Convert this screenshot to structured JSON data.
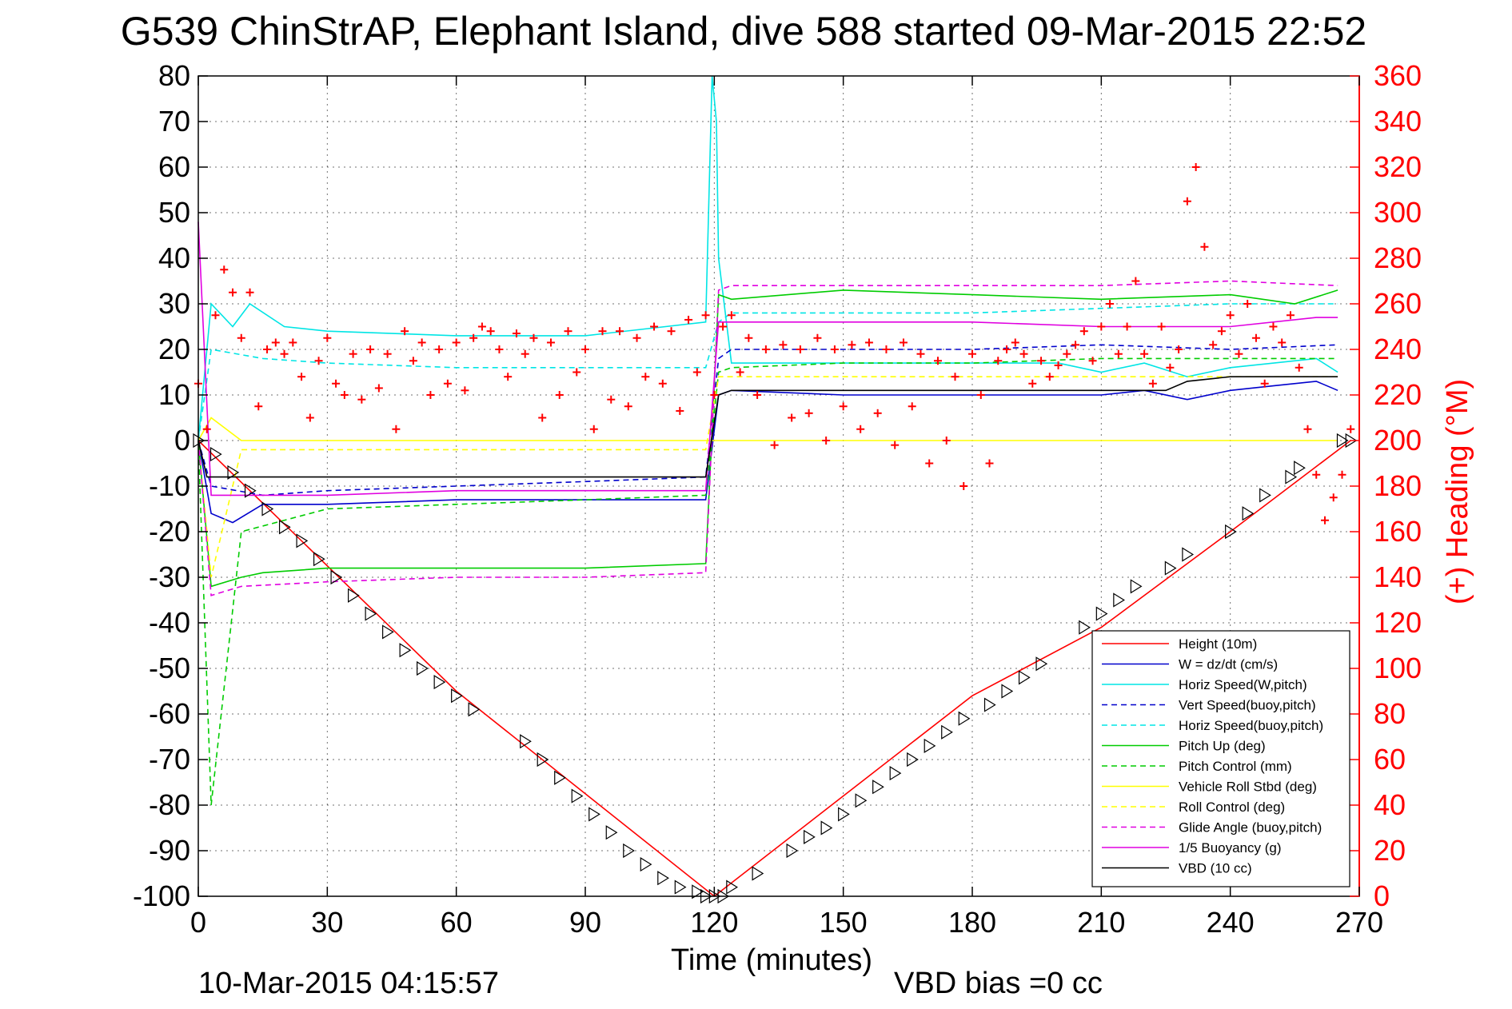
{
  "chart_data": {
    "type": "line",
    "title": "G539 ChinStrAP, Elephant Island, dive 588 started 09-Mar-2015 22:52",
    "xlabel": "Time (minutes)",
    "ylabel_right": "(+) Heading (°M)",
    "xlim": [
      0,
      270
    ],
    "ylim": [
      -100,
      80
    ],
    "ylim_right": [
      0,
      360
    ],
    "x_ticks": [
      "0",
      "30",
      "60",
      "90",
      "120",
      "150",
      "180",
      "210",
      "240",
      "270"
    ],
    "y_ticks": [
      "80",
      "70",
      "60",
      "50",
      "40",
      "30",
      "20",
      "10",
      "0",
      "-10",
      "-20",
      "-30",
      "-40",
      "-50",
      "-60",
      "-70",
      "-80",
      "-90",
      "-100"
    ],
    "y_ticks_right": [
      "360",
      "340",
      "320",
      "300",
      "280",
      "260",
      "240",
      "220",
      "200",
      "180",
      "160",
      "140",
      "120",
      "100",
      "80",
      "60",
      "40",
      "20",
      "0"
    ],
    "grid": true,
    "legend_position": "bottom-right",
    "footer_left": "10-Mar-2015 04:15:57",
    "footer_right": "VBD bias =0 cc",
    "series": [
      {
        "name": "Height (10m)",
        "color": "#ff0000",
        "style": "solid",
        "x": [
          0,
          60,
          120,
          180,
          210,
          240,
          268
        ],
        "y": [
          0,
          -55,
          -100,
          -56,
          -41,
          -20,
          0
        ]
      },
      {
        "name": "W = dz/dt (cm/s)",
        "color": "#0000cc",
        "style": "solid",
        "x": [
          0,
          3,
          8,
          15,
          30,
          60,
          90,
          118,
          121,
          124,
          150,
          180,
          210,
          220,
          230,
          240,
          250,
          260,
          265
        ],
        "y": [
          0,
          -16,
          -18,
          -14,
          -14,
          -13,
          -13,
          -13,
          10,
          11,
          10,
          10,
          10,
          11,
          9,
          11,
          12,
          13,
          11
        ]
      },
      {
        "name": "Horiz Speed(W,pitch)",
        "color": "#00e5e5",
        "style": "solid",
        "x": [
          0,
          3,
          8,
          12,
          20,
          30,
          60,
          90,
          118,
          119.5,
          120.5,
          121,
          124,
          150,
          180,
          200,
          210,
          220,
          230,
          240,
          260,
          265
        ],
        "y": [
          0,
          30,
          25,
          30,
          25,
          24,
          23,
          23,
          26,
          80,
          70,
          40,
          17,
          17,
          17,
          17,
          15,
          17,
          14,
          16,
          18,
          15
        ]
      },
      {
        "name": "Vert Speed(buoy,pitch)",
        "color": "#0000cc",
        "style": "dashed",
        "x": [
          0,
          3,
          15,
          30,
          60,
          90,
          118,
          121,
          124,
          150,
          180,
          210,
          240,
          265
        ],
        "y": [
          0,
          -10,
          -12,
          -11,
          -10,
          -9,
          -8,
          18,
          20,
          20,
          20,
          21,
          20,
          21
        ]
      },
      {
        "name": "Horiz Speed(buoy,pitch)",
        "color": "#00e5e5",
        "style": "dashed",
        "x": [
          0,
          3,
          15,
          30,
          60,
          90,
          118,
          121,
          124,
          150,
          180,
          210,
          240,
          265
        ],
        "y": [
          0,
          20,
          18,
          17,
          16,
          16,
          16,
          26,
          28,
          28,
          28,
          29,
          30,
          30
        ]
      },
      {
        "name": "Pitch Up (deg)",
        "color": "#00cc00",
        "style": "solid",
        "x": [
          0,
          3,
          10,
          15,
          30,
          60,
          90,
          118,
          121,
          124,
          150,
          180,
          210,
          240,
          255,
          265
        ],
        "y": [
          0,
          -32,
          -30,
          -29,
          -28,
          -28,
          -28,
          -27,
          32,
          31,
          33,
          32,
          31,
          32,
          30,
          33
        ]
      },
      {
        "name": "Pitch Control (mm)",
        "color": "#00cc00",
        "style": "dashed",
        "x": [
          0,
          3,
          10,
          30,
          60,
          90,
          118,
          121,
          124,
          150,
          180,
          210,
          240,
          265
        ],
        "y": [
          0,
          -80,
          -20,
          -15,
          -14,
          -13,
          -12,
          15,
          16,
          17,
          17,
          18,
          18,
          18
        ]
      },
      {
        "name": "Vehicle Roll Stbd (deg)",
        "color": "#ffff00",
        "style": "solid",
        "x": [
          0,
          3,
          10,
          30,
          60,
          90,
          118,
          121,
          150,
          180,
          210,
          240,
          265
        ],
        "y": [
          0,
          5,
          0,
          0,
          0,
          0,
          0,
          0,
          0,
          0,
          0,
          0,
          0
        ]
      },
      {
        "name": "Roll Control (deg)",
        "color": "#ffff00",
        "style": "dashed",
        "x": [
          0,
          3,
          10,
          30,
          60,
          90,
          118,
          121,
          150,
          180,
          210,
          240,
          265
        ],
        "y": [
          0,
          -30,
          -2,
          -2,
          -2,
          -2,
          -2,
          14,
          14,
          14,
          14,
          14,
          14
        ]
      },
      {
        "name": "Glide Angle (buoy,pitch)",
        "color": "#e000e0",
        "style": "dashed",
        "x": [
          0,
          3,
          10,
          30,
          60,
          90,
          118,
          121,
          124,
          150,
          180,
          210,
          240,
          265
        ],
        "y": [
          0,
          -34,
          -32,
          -31,
          -30,
          -30,
          -29,
          33,
          34,
          34,
          34,
          34,
          35,
          34
        ]
      },
      {
        "name": "1/5 Buoyancy (g)",
        "color": "#e000e0",
        "style": "solid",
        "x": [
          0,
          3,
          10,
          30,
          60,
          90,
          118,
          121,
          124,
          150,
          180,
          210,
          240,
          260,
          265
        ],
        "y": [
          48,
          -12,
          -12,
          -12,
          -11,
          -11,
          -11,
          26,
          26,
          26,
          26,
          25,
          25,
          27,
          27
        ]
      },
      {
        "name": "VBD (10 cc)",
        "color": "#000000",
        "style": "solid",
        "x": [
          0,
          2,
          60,
          118,
          121,
          124,
          150,
          180,
          210,
          225,
          230,
          240,
          265
        ],
        "y": [
          0,
          -8,
          -8,
          -8,
          10,
          11,
          11,
          11,
          11,
          11,
          13,
          14,
          14
        ]
      }
    ],
    "heading": {
      "name": "Heading (°M)",
      "color": "#ff0000",
      "marker": "+",
      "axis": "right",
      "x": [
        0,
        2,
        4,
        6,
        8,
        10,
        12,
        14,
        16,
        18,
        20,
        22,
        24,
        26,
        28,
        30,
        32,
        34,
        36,
        38,
        40,
        42,
        44,
        46,
        48,
        50,
        52,
        54,
        56,
        58,
        60,
        62,
        64,
        66,
        68,
        70,
        72,
        74,
        76,
        78,
        80,
        82,
        84,
        86,
        88,
        90,
        92,
        94,
        96,
        98,
        100,
        102,
        104,
        106,
        108,
        110,
        112,
        114,
        116,
        118,
        120,
        122,
        124,
        126,
        128,
        130,
        132,
        134,
        136,
        138,
        140,
        142,
        144,
        146,
        148,
        150,
        152,
        154,
        156,
        158,
        160,
        162,
        164,
        166,
        168,
        170,
        172,
        174,
        176,
        178,
        180,
        182,
        184,
        186,
        188,
        190,
        192,
        194,
        196,
        198,
        200,
        202,
        204,
        206,
        208,
        210,
        212,
        214,
        216,
        218,
        220,
        222,
        224,
        226,
        228,
        230,
        232,
        234,
        236,
        238,
        240,
        242,
        244,
        246,
        248,
        250,
        252,
        254,
        256,
        258,
        260,
        262,
        264,
        266,
        268
      ],
      "y": [
        225,
        205,
        255,
        275,
        265,
        245,
        265,
        215,
        240,
        243,
        238,
        243,
        228,
        210,
        235,
        245,
        225,
        220,
        238,
        218,
        240,
        223,
        238,
        205,
        248,
        235,
        243,
        220,
        240,
        225,
        243,
        222,
        245,
        250,
        248,
        240,
        228,
        247,
        238,
        245,
        210,
        243,
        220,
        248,
        230,
        240,
        205,
        248,
        218,
        248,
        215,
        245,
        228,
        250,
        225,
        248,
        213,
        253,
        230,
        255,
        220,
        250,
        255,
        230,
        245,
        220,
        240,
        198,
        242,
        210,
        240,
        212,
        245,
        200,
        240,
        215,
        242,
        205,
        243,
        212,
        240,
        198,
        243,
        215,
        238,
        190,
        235,
        200,
        228,
        180,
        238,
        220,
        190,
        235,
        240,
        243,
        238,
        225,
        235,
        228,
        233,
        238,
        242,
        248,
        235,
        250,
        260,
        238,
        250,
        270,
        238,
        225,
        250,
        232,
        240,
        305,
        320,
        285,
        242,
        248,
        255,
        238,
        260,
        245,
        225,
        250,
        243,
        255,
        232,
        205,
        185,
        165,
        175,
        185,
        205
      ]
    },
    "depth_markers": {
      "marker": "triangle",
      "color": "#000000",
      "x": [
        0,
        4,
        8,
        12,
        16,
        20,
        24,
        28,
        32,
        36,
        40,
        44,
        48,
        52,
        56,
        60,
        64,
        76,
        80,
        84,
        88,
        92,
        96,
        100,
        104,
        108,
        112,
        116,
        118,
        120,
        122,
        124,
        130,
        138,
        142,
        146,
        150,
        154,
        158,
        162,
        166,
        170,
        174,
        178,
        184,
        188,
        192,
        196,
        206,
        210,
        214,
        218,
        226,
        230,
        240,
        244,
        248,
        254,
        256,
        266,
        268
      ],
      "y": [
        0,
        -3,
        -7,
        -11,
        -15,
        -19,
        -22,
        -26,
        -30,
        -34,
        -38,
        -42,
        -46,
        -50,
        -53,
        -56,
        -59,
        -66,
        -70,
        -74,
        -78,
        -82,
        -86,
        -90,
        -93,
        -96,
        -98,
        -99,
        -100,
        -100,
        -100,
        -98,
        -95,
        -90,
        -87,
        -85,
        -82,
        -79,
        -76,
        -73,
        -70,
        -67,
        -64,
        -61,
        -58,
        -55,
        -52,
        -49,
        -41,
        -38,
        -35,
        -32,
        -28,
        -25,
        -20,
        -16,
        -12,
        -8,
        -6,
        0,
        0
      ]
    }
  }
}
